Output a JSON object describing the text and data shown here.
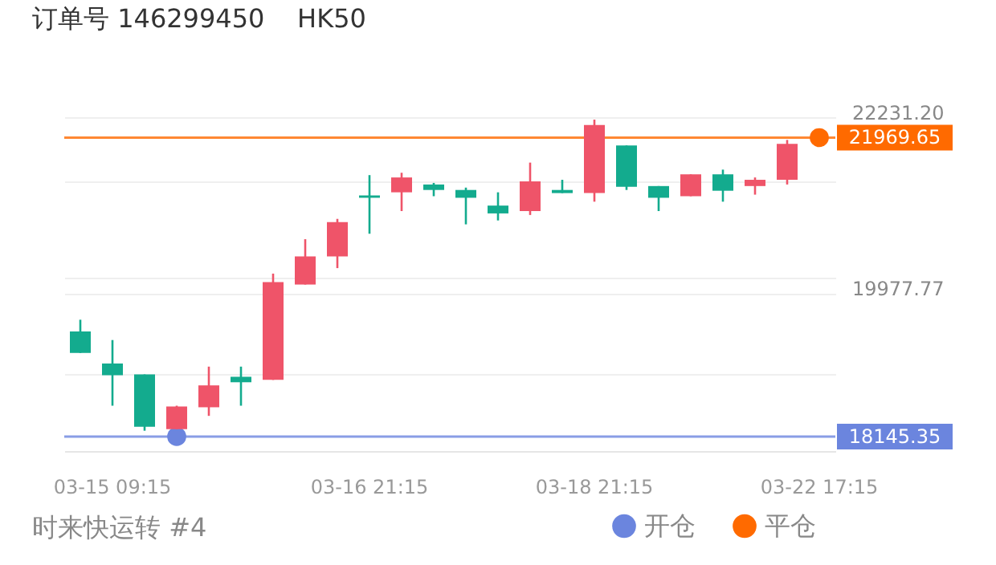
{
  "chart_data": {
    "type": "candlestick",
    "title": "订单号 146299450    HK50",
    "categories": [
      null,
      "03-15 09:15",
      null,
      null,
      null,
      null,
      null,
      null,
      null,
      "03-16 21:15",
      null,
      null,
      null,
      null,
      null,
      null,
      "03-18 21:15",
      null,
      null,
      null,
      null,
      null,
      null,
      "03-22 17:15"
    ],
    "ohlc": [
      [
        19490,
        19640,
        19215,
        19215
      ],
      [
        19080,
        19380,
        18540,
        18930
      ],
      [
        18940,
        18940,
        18220,
        18270
      ],
      [
        18240,
        18540,
        18240,
        18530
      ],
      [
        18520,
        19040,
        18410,
        18800
      ],
      [
        18910,
        19040,
        18540,
        18840
      ],
      [
        18870,
        20230,
        18870,
        20120
      ],
      [
        20090,
        20670,
        20090,
        20450
      ],
      [
        20450,
        20930,
        20300,
        20890
      ],
      [
        21230,
        21490,
        20740,
        21200
      ],
      [
        21270,
        21520,
        21030,
        21460
      ],
      [
        21370,
        21390,
        21220,
        21300
      ],
      [
        21300,
        21330,
        20860,
        21200
      ],
      [
        21100,
        21270,
        20910,
        21000
      ],
      [
        21030,
        21650,
        20980,
        21410
      ],
      [
        21300,
        21430,
        21260,
        21260
      ],
      [
        21260,
        22200,
        21150,
        22130
      ],
      [
        21870,
        21870,
        21300,
        21340
      ],
      [
        21350,
        21350,
        21030,
        21200
      ],
      [
        21220,
        21500,
        21220,
        21500
      ],
      [
        21500,
        21560,
        21150,
        21290
      ],
      [
        21350,
        21460,
        21240,
        21430
      ],
      [
        21430,
        21940,
        21370,
        21890
      ],
      null
    ],
    "colors": [
      "#13ab8e",
      "#13ab8e",
      "#13ab8e",
      "#ef5469",
      "#ef5469",
      "#13ab8e",
      "#ef5469",
      "#ef5469",
      "#ef5469",
      "#13ab8e",
      "#ef5469",
      "#13ab8e",
      "#13ab8e",
      "#13ab8e",
      "#ef5469",
      "#13ab8e",
      "#ef5469",
      "#13ab8e",
      "#13ab8e",
      "#ef5469",
      "#13ab8e",
      "#ef5469",
      "#ef5469",
      null
    ],
    "series": [
      {
        "type": "scatter",
        "name": "开仓",
        "color": "#6b85de",
        "values": [
          null,
          null,
          null,
          18145.35,
          null,
          null,
          null,
          null,
          null,
          null,
          null,
          null,
          null,
          null,
          null,
          null,
          null,
          null,
          null,
          null,
          null,
          null,
          null,
          null
        ]
      },
      {
        "type": "scatter",
        "name": "平仓",
        "color": "#ff6a00",
        "values": [
          null,
          null,
          null,
          null,
          null,
          null,
          null,
          null,
          null,
          null,
          null,
          null,
          null,
          null,
          null,
          null,
          null,
          null,
          null,
          null,
          null,
          null,
          null,
          21969.65
        ]
      }
    ],
    "ylim": [
      17960,
      22231.2
    ],
    "yticks": [
      {
        "value": 22231.2,
        "label": "22231.20"
      },
      {
        "value": 21414,
        "label": null
      },
      {
        "value": 20181,
        "label": null
      },
      {
        "value": 19977.77,
        "label": "19977.77"
      },
      {
        "value": 18947,
        "label": null
      }
    ],
    "ref_lines": [
      {
        "axis": "y",
        "value": 21969.65,
        "label": "21969.65",
        "color": "#ff6a00"
      },
      {
        "axis": "y",
        "value": 18145.35,
        "label": "18145.35",
        "color": "#6b85de"
      }
    ],
    "grid": "y",
    "legend": "bottom right",
    "marker": "circle",
    "annotations": [
      "时来快运转 #4"
    ]
  }
}
